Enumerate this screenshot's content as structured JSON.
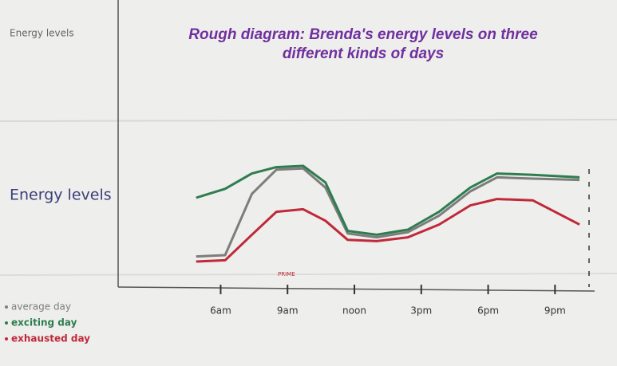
{
  "chart_data": {
    "type": "line",
    "title": "Rough diagram: Brenda's energy levels on three different kinds of days",
    "corner_label": "Energy levels",
    "y_label": "Energy levels",
    "annotation": "PRIME",
    "x": [
      4.9,
      6.2,
      7.4,
      8.5,
      9.7,
      10.7,
      11.7,
      13,
      14.4,
      15.8,
      17.2,
      18.4,
      20,
      22.1
    ],
    "xlim": [
      1.4,
      22.6
    ],
    "xticks": [
      {
        "value": 6,
        "label": "6am"
      },
      {
        "value": 9,
        "label": "9am"
      },
      {
        "value": 12,
        "label": "noon"
      },
      {
        "value": 15,
        "label": "3pm"
      },
      {
        "value": 18,
        "label": "6pm"
      },
      {
        "value": 21,
        "label": "9pm"
      }
    ],
    "ylim": [
      0,
      100
    ],
    "series": [
      {
        "name": "average day",
        "color": "#7d7d7d",
        "values": [
          24,
          25,
          73,
          92,
          93,
          78,
          42,
          39,
          43,
          56,
          75,
          86,
          85,
          84
        ]
      },
      {
        "name": "exciting day",
        "color": "#2e7d4f",
        "values": [
          70,
          77,
          89,
          94,
          95,
          82,
          44,
          41,
          45,
          59,
          78,
          89,
          88,
          86
        ]
      },
      {
        "name": "exhausted day",
        "color": "#c0293a",
        "values": [
          20,
          21,
          41,
          59,
          61,
          52,
          37,
          36,
          39,
          49,
          64,
          69,
          68,
          49
        ]
      }
    ]
  }
}
